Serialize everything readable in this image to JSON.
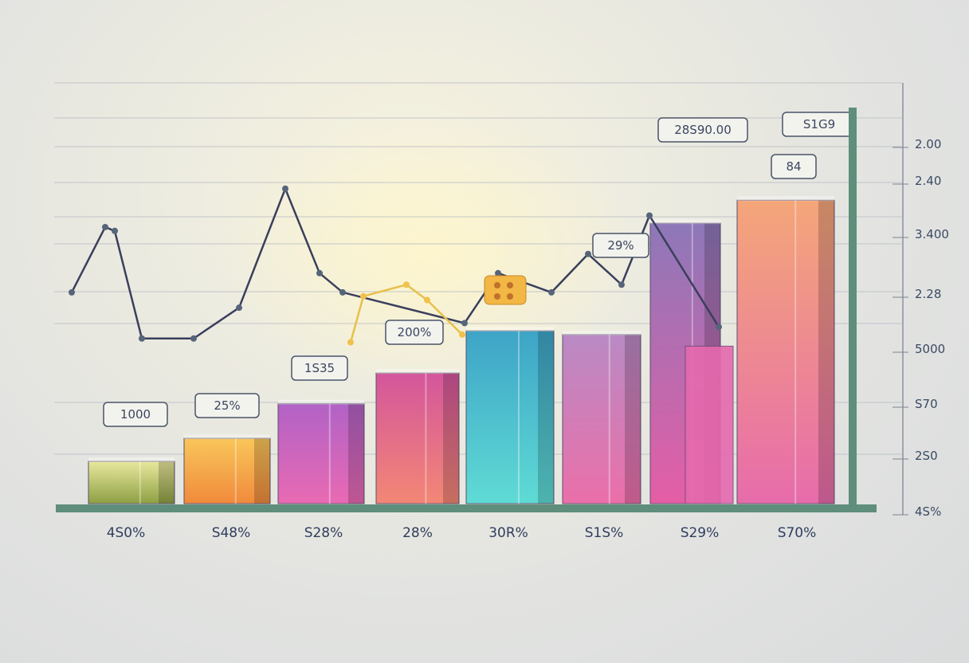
{
  "chart_data": {
    "type": "bar",
    "title": "",
    "xlabel": "",
    "ylabel": "",
    "categories": [
      "4S0%",
      "S48%",
      "S28%",
      "28%",
      "30R%",
      "S1S%",
      "S29%",
      "S70%"
    ],
    "series": [
      {
        "values": [
          11,
          17,
          26,
          34,
          45,
          44,
          73,
          79
        ]
      },
      {
        "values": [
          null,
          null,
          null,
          null,
          null,
          null,
          41,
          null
        ]
      }
    ],
    "line_values": [
      55,
      72,
      71,
      43,
      43,
      51,
      82,
      60,
      55,
      47,
      60,
      55,
      65,
      57,
      75,
      46
    ],
    "line2_values": [
      42,
      54,
      57,
      53,
      44
    ],
    "ylim": [
      0,
      100
    ],
    "y_tick_labels": [
      "2.00",
      "2.40",
      "3.400",
      "2.28",
      "5000",
      "S70",
      "2S0",
      "4S%"
    ],
    "callouts": [
      {
        "text": "1000",
        "bar": 0
      },
      {
        "text": "25%",
        "bar": 1
      },
      {
        "text": "1S35",
        "bar": 2
      },
      {
        "text": "200%",
        "bar": 3
      },
      {
        "text": "29%",
        "bar": 6
      },
      {
        "text": "28S90.00",
        "bar": 6
      },
      {
        "text": "84",
        "bar": 7
      },
      {
        "text": "S1G9",
        "bar": 7
      }
    ],
    "grid": true,
    "colors": {
      "bars": [
        [
          "#e9e79d",
          "#8da043"
        ],
        [
          "#f9c65a",
          "#f08a3c"
        ],
        [
          "#b162c6",
          "#e96ab3"
        ],
        [
          "#d3569c",
          "#f38775"
        ],
        [
          "#3ea4c7",
          "#5fdbd5"
        ],
        [
          "#b98ac4",
          "#eb6fa9"
        ],
        [
          "#8d78b8",
          "#e55ea6"
        ],
        [
          "#f4a679",
          "#e76cab"
        ]
      ],
      "line": "#3a3f5c",
      "line_highlight": "#e8c04a",
      "axis": "#5f8e7c"
    }
  }
}
